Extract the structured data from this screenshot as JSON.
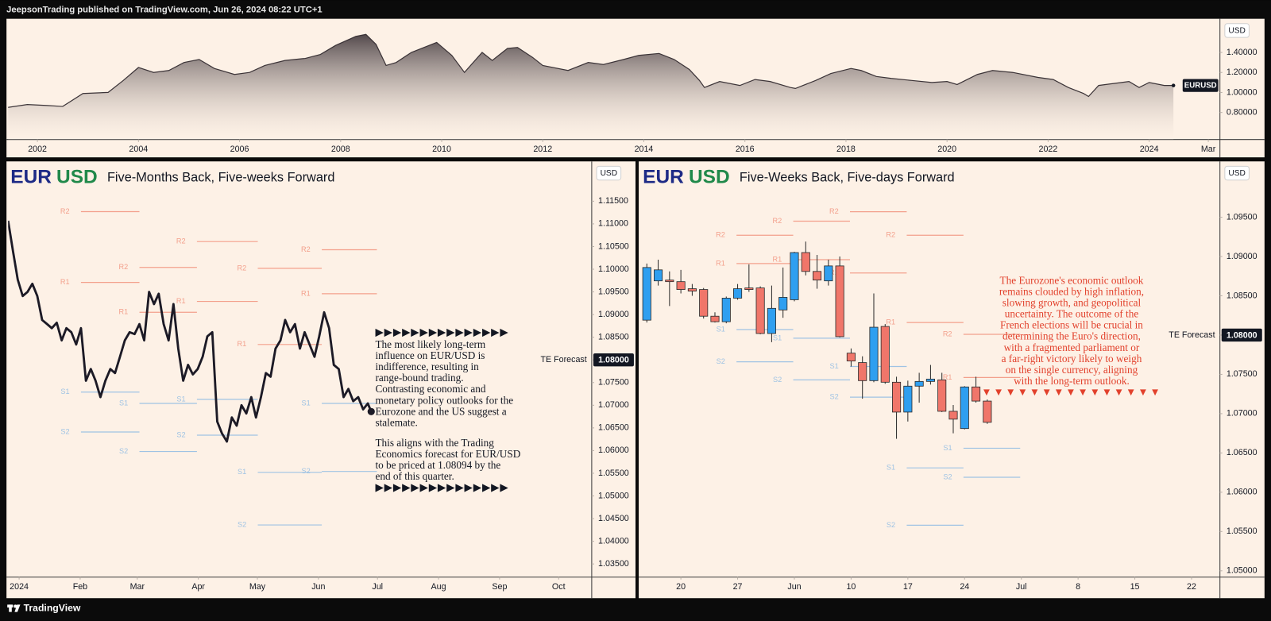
{
  "header": "JeepsonTrading published on TradingView.com, Jun 26, 2024 08:22 UTC+1",
  "footer": "TradingView",
  "chart_data": [
    {
      "type": "area",
      "axis_label": "USD",
      "symbol_label": "EURUSD",
      "color": "#3b3337",
      "x": [
        2001.4,
        2001.8,
        2002.2,
        2002.5,
        2002.9,
        2003.4,
        2003.7,
        2004.0,
        2004.3,
        2004.6,
        2004.9,
        2005.2,
        2005.5,
        2005.9,
        2006.2,
        2006.5,
        2006.9,
        2007.3,
        2007.6,
        2007.9,
        2008.3,
        2008.5,
        2008.7,
        2008.9,
        2009.1,
        2009.4,
        2009.9,
        2010.2,
        2010.45,
        2010.8,
        2011.0,
        2011.3,
        2011.5,
        2011.8,
        2012.0,
        2012.5,
        2012.9,
        2013.2,
        2013.6,
        2013.9,
        2014.3,
        2014.6,
        2014.9,
        2015.1,
        2015.2,
        2015.5,
        2015.9,
        2016.2,
        2016.5,
        2016.9,
        2017.0,
        2017.4,
        2017.7,
        2018.1,
        2018.3,
        2018.6,
        2018.9,
        2019.3,
        2019.7,
        2020.0,
        2020.2,
        2020.6,
        2020.9,
        2021.3,
        2021.8,
        2022.1,
        2022.4,
        2022.7,
        2022.8,
        2023.0,
        2023.3,
        2023.6,
        2023.8,
        2024.0,
        2024.3,
        2024.48
      ],
      "values": [
        0.85,
        0.88,
        0.87,
        0.86,
        0.99,
        1.0,
        1.12,
        1.25,
        1.2,
        1.22,
        1.3,
        1.33,
        1.24,
        1.18,
        1.2,
        1.27,
        1.32,
        1.34,
        1.38,
        1.47,
        1.56,
        1.58,
        1.48,
        1.27,
        1.3,
        1.4,
        1.5,
        1.37,
        1.2,
        1.4,
        1.32,
        1.44,
        1.45,
        1.35,
        1.27,
        1.22,
        1.3,
        1.28,
        1.33,
        1.37,
        1.39,
        1.33,
        1.23,
        1.12,
        1.05,
        1.11,
        1.07,
        1.13,
        1.11,
        1.05,
        1.04,
        1.12,
        1.19,
        1.24,
        1.22,
        1.16,
        1.14,
        1.12,
        1.1,
        1.11,
        1.08,
        1.18,
        1.22,
        1.2,
        1.15,
        1.13,
        1.05,
        0.99,
        0.96,
        1.07,
        1.09,
        1.11,
        1.05,
        1.1,
        1.07,
        1.07
      ],
      "xlim": [
        2001.42,
        2025.4
      ],
      "xticks": [
        2002,
        2004,
        2006,
        2008,
        2010,
        2012,
        2014,
        2016,
        2018,
        2020,
        2022,
        2024,
        {
          "value": 2025.17,
          "label": "Mar"
        }
      ],
      "ylim": [
        0.53,
        1.72
      ],
      "yticks": [
        {
          "value": 0.8,
          "label": "0.80000"
        },
        {
          "value": 1.0,
          "label": "1.00000"
        },
        {
          "value": 1.2,
          "label": "1.20000"
        },
        {
          "value": 1.4,
          "label": "1.40000"
        }
      ]
    },
    {
      "type": "line",
      "title_base": "EUR",
      "title_quote": "USD",
      "subtitle": "Five-Months Back, Five-weeks Forward",
      "axis_label": "USD",
      "color": "#1c1a26",
      "x": [
        -5.6,
        -3.1,
        -0.7,
        1.8,
        4.3,
        6.7,
        9.2,
        11.7,
        14.2,
        16.6,
        19.1,
        21.6,
        24.0,
        26.5,
        29.0,
        31.4,
        33.9,
        36.4,
        38.8,
        41.3,
        43.8,
        46.3,
        48.7,
        51.2,
        53.7,
        56.1,
        58.6,
        61.1,
        63.5,
        66.0,
        68.5,
        70.9,
        73.4,
        75.9,
        78.4,
        80.8,
        83.3,
        85.8,
        88.2,
        90.7,
        93.2,
        95.6,
        98.1,
        100.6,
        103.0,
        105.5,
        108.0,
        110.5,
        112.9,
        115.4,
        117.9,
        120.3,
        122.8,
        125.3,
        127.7,
        130.2,
        132.7,
        135.1,
        137.6,
        140.1,
        142.6,
        145.0,
        147.5,
        150.0,
        152.4,
        154.9,
        157.4,
        159.8,
        162.3,
        164.8,
        167.2,
        169.7,
        172.2,
        174.7,
        177.1,
        178.8
      ],
      "values": [
        1.1107,
        1.1039,
        1.0977,
        1.0941,
        1.095,
        1.0968,
        1.0941,
        1.0888,
        1.0879,
        1.087,
        1.0882,
        1.0843,
        1.087,
        1.0861,
        1.0834,
        1.087,
        1.0754,
        1.078,
        1.0754,
        1.0718,
        1.0754,
        1.078,
        1.0771,
        1.0807,
        1.0843,
        1.0861,
        1.0857,
        1.0879,
        1.0843,
        1.095,
        1.0923,
        1.0946,
        1.0879,
        1.0843,
        1.0923,
        1.0825,
        1.0754,
        1.0789,
        1.0768,
        1.078,
        1.0807,
        1.0852,
        1.0861,
        1.0664,
        1.0638,
        1.062,
        1.0673,
        1.0655,
        1.07,
        1.0682,
        1.0718,
        1.0673,
        1.0718,
        1.0771,
        1.0763,
        1.0825,
        1.0843,
        1.0888,
        1.0861,
        1.0879,
        1.0825,
        1.0861,
        1.0834,
        1.0807,
        1.0852,
        1.0905,
        1.087,
        1.0789,
        1.078,
        1.0718,
        1.0736,
        1.0709,
        1.0718,
        1.0691,
        1.0704,
        1.0686
      ],
      "xlim": [
        -5.6,
        290.8
      ],
      "xticks": [
        {
          "value": 0,
          "label": "2024"
        },
        {
          "value": 31,
          "label": "Feb"
        },
        {
          "value": 60,
          "label": "Mar"
        },
        {
          "value": 91,
          "label": "Apr"
        },
        {
          "value": 121,
          "label": "May"
        },
        {
          "value": 152,
          "label": "Jun"
        },
        {
          "value": 182,
          "label": "Jul"
        },
        {
          "value": 213,
          "label": "Aug"
        },
        {
          "value": 244,
          "label": "Sep"
        },
        {
          "value": 274,
          "label": "Oct"
        }
      ],
      "ylim": [
        1.0321,
        1.1236
      ],
      "yticks": [
        {
          "value": 1.035,
          "label": "1.03500"
        },
        {
          "value": 1.04,
          "label": "1.04000"
        },
        {
          "value": 1.045,
          "label": "1.04500"
        },
        {
          "value": 1.05,
          "label": "1.05000"
        },
        {
          "value": 1.055,
          "label": "1.05500"
        },
        {
          "value": 1.06,
          "label": "1.06000"
        },
        {
          "value": 1.065,
          "label": "1.06500"
        },
        {
          "value": 1.07,
          "label": "1.07000"
        },
        {
          "value": 1.075,
          "label": "1.07500"
        },
        {
          "value": 1.08,
          "label": "1.08000"
        },
        {
          "value": 1.085,
          "label": "1.08500"
        },
        {
          "value": 1.09,
          "label": "1.09000"
        },
        {
          "value": 1.095,
          "label": "1.09500"
        },
        {
          "value": 1.1,
          "label": "1.10000"
        },
        {
          "value": 1.105,
          "label": "1.10500"
        },
        {
          "value": 1.11,
          "label": "1.11000"
        },
        {
          "value": 1.115,
          "label": "1.11500"
        }
      ],
      "pivots": {
        "periods": [
          [
            31.4,
            61.1
          ],
          [
            61.1,
            90.3
          ],
          [
            90.3,
            121.2
          ],
          [
            121.2,
            153.7
          ],
          [
            153.7,
            181.7
          ]
        ],
        "levels": [
          {
            "name": "R2",
            "color": "#f3a08c",
            "values": [
              1.1127,
              1.1004,
              1.1061,
              1.1002,
              1.1043
            ]
          },
          {
            "name": "R1",
            "color": "#f3a08c",
            "values": [
              1.0971,
              1.0905,
              1.0929,
              1.0834,
              1.0946
            ]
          },
          {
            "name": "S1",
            "color": "#9fc3e4",
            "values": [
              1.0729,
              1.0704,
              1.0713,
              1.0552,
              1.0704
            ]
          },
          {
            "name": "S2",
            "color": "#9fc3e4",
            "values": [
              1.0641,
              1.0598,
              1.0634,
              1.0436,
              1.0554
            ]
          }
        ]
      },
      "forecast": {
        "label": "TE Forecast",
        "value": 1.08,
        "value_label": "1.08000"
      },
      "annotation": {
        "arrows": "▶▶▶▶▶▶▶▶▶▶▶▶▶▶▶",
        "color": "#131722",
        "paragraphs": [
          [
            "The most likely long-term",
            "influence on EUR/USD is",
            "indifference, resulting in",
            "range-bound trading.",
            "Contrasting economic and",
            "monetary policy outlooks for the",
            "Eurozone and the US suggest a",
            "stalemate."
          ],
          [
            "This aligns with the Trading",
            "Economics forecast for EUR/USD",
            "to be priced at 1.08094 by the",
            "end of this quarter."
          ]
        ]
      }
    },
    {
      "type": "candlestick",
      "title_base": "EUR",
      "title_quote": "USD",
      "subtitle": "Five-Weeks Back, Five-days Forward",
      "axis_label": "USD",
      "up_color": "#2f9ff0",
      "down_color": "#f0766a",
      "x": [
        -3,
        -2,
        -1,
        0,
        1,
        2,
        3,
        4,
        5,
        6,
        7,
        8,
        9,
        10,
        11,
        12,
        13,
        14,
        15,
        16,
        17,
        18,
        19,
        20,
        21,
        22,
        23,
        24,
        25,
        26,
        27
      ],
      "open": [
        1.0819,
        1.0869,
        1.087,
        1.0868,
        1.0859,
        1.0858,
        1.0824,
        1.0817,
        1.0847,
        1.086,
        1.086,
        1.0802,
        1.0832,
        1.0845,
        1.0905,
        1.0881,
        1.0869,
        1.0888,
        1.0777,
        1.0765,
        1.0742,
        1.0811,
        1.074,
        1.0702,
        1.0735,
        1.0741,
        1.0743,
        1.0703,
        1.0681,
        1.0734,
        1.0716
      ],
      "high": [
        1.0891,
        1.0896,
        1.0881,
        1.0883,
        1.0865,
        1.086,
        1.0829,
        1.0849,
        1.0865,
        1.089,
        1.0862,
        1.0863,
        1.0886,
        1.0906,
        1.0919,
        1.0902,
        1.0896,
        1.09,
        1.0783,
        1.0773,
        1.0853,
        1.0814,
        1.0747,
        1.0742,
        1.0752,
        1.0762,
        1.0752,
        1.0711,
        1.0735,
        1.0747,
        1.0718
      ],
      "low": [
        1.0816,
        1.0863,
        1.0837,
        1.0853,
        1.085,
        1.0821,
        1.0816,
        1.0815,
        1.0845,
        1.0855,
        1.0801,
        1.0791,
        1.0822,
        1.0843,
        1.0876,
        1.0859,
        1.0863,
        1.0797,
        1.076,
        1.0719,
        1.074,
        1.0738,
        1.0668,
        1.069,
        1.0714,
        1.0737,
        1.0702,
        1.0675,
        1.068,
        1.0714,
        1.0687
      ],
      "close": [
        1.0886,
        1.0883,
        1.0868,
        1.0858,
        1.0856,
        1.0824,
        1.0817,
        1.0847,
        1.0859,
        1.0858,
        1.0802,
        1.0834,
        1.0848,
        1.0905,
        1.0881,
        1.087,
        1.0888,
        1.0798,
        1.0767,
        1.0742,
        1.081,
        1.074,
        1.0702,
        1.0735,
        1.0741,
        1.0744,
        1.0703,
        1.0693,
        1.0734,
        1.0716,
        1.0689
      ],
      "xlim": [
        -3.57,
        47.5
      ],
      "xticks": [
        {
          "value": 0,
          "label": "20"
        },
        {
          "value": 5,
          "label": "27"
        },
        {
          "value": 10,
          "label": "Jun"
        },
        {
          "value": 15,
          "label": "10"
        },
        {
          "value": 20,
          "label": "17"
        },
        {
          "value": 25,
          "label": "24"
        },
        {
          "value": 30,
          "label": "Jul"
        },
        {
          "value": 35,
          "label": "8"
        },
        {
          "value": 40,
          "label": "15"
        },
        {
          "value": 45,
          "label": "22"
        }
      ],
      "ylim": [
        1.0492,
        1.102
      ],
      "yticks": [
        {
          "value": 1.05,
          "label": "1.05000"
        },
        {
          "value": 1.055,
          "label": "1.05500"
        },
        {
          "value": 1.06,
          "label": "1.06000"
        },
        {
          "value": 1.065,
          "label": "1.06500"
        },
        {
          "value": 1.07,
          "label": "1.07000"
        },
        {
          "value": 1.075,
          "label": "1.07500"
        },
        {
          "value": 1.08,
          "label": "1.08000"
        },
        {
          "value": 1.085,
          "label": "1.08500"
        },
        {
          "value": 1.09,
          "label": "1.09000"
        },
        {
          "value": 1.095,
          "label": "1.09500"
        }
      ],
      "pivots": {
        "periods": [
          [
            4.9,
            9.9
          ],
          [
            9.9,
            14.9
          ],
          [
            14.9,
            19.9
          ],
          [
            19.9,
            24.9
          ],
          [
            24.9,
            29.9
          ]
        ],
        "levels": [
          {
            "name": "R2",
            "color": "#f3a08c",
            "values": [
              1.0927,
              1.0945,
              1.0957,
              1.0927,
              1.0801
            ]
          },
          {
            "name": "R1",
            "color": "#f3a08c",
            "values": [
              1.0891,
              1.0896,
              1.0879,
              1.0816,
              1.0746
            ]
          },
          {
            "name": "S1",
            "color": "#9fc3e4",
            "values": [
              1.0807,
              1.0796,
              1.076,
              1.0631,
              1.0656
            ]
          },
          {
            "name": "S2",
            "color": "#9fc3e4",
            "values": [
              1.0766,
              1.0743,
              1.0721,
              1.0558,
              1.0619
            ]
          }
        ]
      },
      "forecast": {
        "label": "TE Forecast",
        "value": 1.08,
        "value_label": "1.08000"
      },
      "annotation": {
        "arrows": "▼▼▼▼▼▼▼▼▼▼▼▼▼▼▼",
        "color": "#e2412c",
        "paragraphs": [
          [
            "The Eurozone's economic outlook",
            "remains clouded by high inflation,",
            "slowing growth, and geopolitical",
            "uncertainty. The outcome of the",
            "French elections will be crucial in",
            "determining the Euro's direction,",
            "with a fragmented parliament or",
            "a far-right victory likely to weigh",
            "on the single currency, aligning",
            "with the long-term outlook."
          ]
        ]
      }
    }
  ]
}
